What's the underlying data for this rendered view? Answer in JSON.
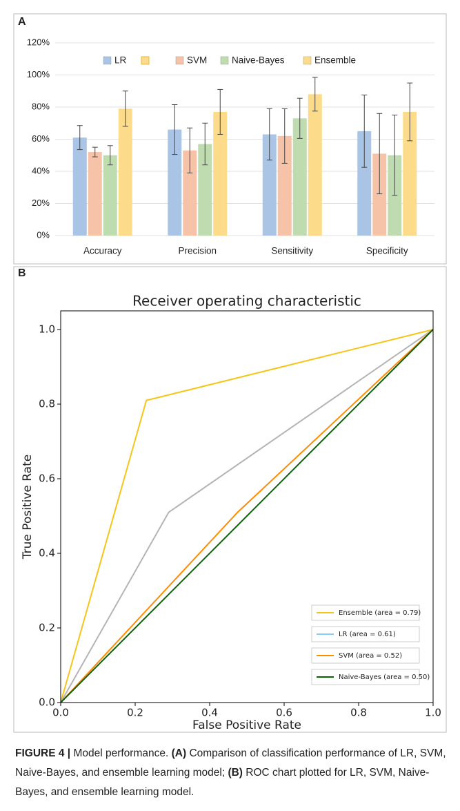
{
  "chart_data": [
    {
      "type": "bar",
      "panel": "A",
      "categories": [
        "Accuracy",
        "Precision",
        "Sensitivity",
        "Specificity"
      ],
      "series": [
        {
          "name": "LR",
          "color": "#a9c4e4",
          "values": [
            61,
            66,
            63,
            65
          ],
          "errors": [
            7.5,
            15.5,
            16,
            22.5
          ]
        },
        {
          "name": "SVM",
          "color": "#f6c2a8",
          "values": [
            52,
            53,
            62,
            51
          ],
          "errors": [
            3,
            14,
            17,
            25
          ]
        },
        {
          "name": "Naive-Bayes",
          "color": "#bfdcb0",
          "values": [
            50,
            57,
            73,
            50
          ],
          "errors": [
            6,
            13,
            12.5,
            25
          ]
        },
        {
          "name": "Ensemble",
          "color": "#fcdc8a",
          "values": [
            79,
            77,
            88,
            77
          ],
          "errors": [
            11,
            14,
            10.5,
            18
          ]
        }
      ],
      "ylim": [
        0,
        120
      ],
      "yticks": [
        {
          "value": 0,
          "label": "0%"
        },
        {
          "value": 20,
          "label": "20%"
        },
        {
          "value": 40,
          "label": "40%"
        },
        {
          "value": 60,
          "label": "60%"
        },
        {
          "value": 80,
          "label": "80%"
        },
        {
          "value": 100,
          "label": "100%"
        },
        {
          "value": 120,
          "label": "120%"
        }
      ],
      "grid": true
    },
    {
      "type": "line",
      "panel": "B",
      "title": "Receiver operating characteristic",
      "xlabel": "False Positive Rate",
      "ylabel": "True Positive Rate",
      "series": [
        {
          "name": "Ensemble (area = 0.79)",
          "color": "#f5c518",
          "x": [
            0,
            0.23,
            1
          ],
          "values": [
            0,
            0.81,
            1
          ]
        },
        {
          "name": "LR (area = 0.61)",
          "color": "#87cefa",
          "line_color": "#b4b4b4",
          "x": [
            0,
            0.29,
            1
          ],
          "values": [
            0,
            0.51,
            1
          ]
        },
        {
          "name": "SVM (area = 0.52)",
          "color": "#ff8c00",
          "x": [
            0,
            0.475,
            1
          ],
          "values": [
            0,
            0.51,
            1
          ]
        },
        {
          "name": "Naive-Bayes (area = 0.50)",
          "color": "#006400",
          "x": [
            0,
            1
          ],
          "values": [
            0,
            1
          ]
        }
      ],
      "xlim": [
        0,
        1
      ],
      "ylim": [
        0,
        1.05
      ],
      "xticks": [
        {
          "value": 0,
          "label": "0.0"
        },
        {
          "value": 0.2,
          "label": "0.2"
        },
        {
          "value": 0.4,
          "label": "0.4"
        },
        {
          "value": 0.6,
          "label": "0.6"
        },
        {
          "value": 0.8,
          "label": "0.8"
        },
        {
          "value": 1,
          "label": "1.0"
        }
      ],
      "yticks": [
        {
          "value": 0,
          "label": "0.0"
        },
        {
          "value": 0.2,
          "label": "0.2"
        },
        {
          "value": 0.4,
          "label": "0.4"
        },
        {
          "value": 0.6,
          "label": "0.6"
        },
        {
          "value": 0.8,
          "label": "0.8"
        },
        {
          "value": 1,
          "label": "1.0"
        }
      ],
      "grid": false
    }
  ],
  "caption": [
    {
      "text": "FIGURE 4 |",
      "bold": true
    },
    {
      "text": " Model performance. ",
      "bold": false
    },
    {
      "text": "(A)",
      "bold": true
    },
    {
      "text": " Comparison of classification performance of LR, SVM, Naive-Bayes, and ensemble learning model; ",
      "bold": false
    },
    {
      "text": "(B)",
      "bold": true
    },
    {
      "text": " ROC chart plotted for LR, SVM, Naive-Bayes, and ensemble learning model.",
      "bold": false
    }
  ]
}
